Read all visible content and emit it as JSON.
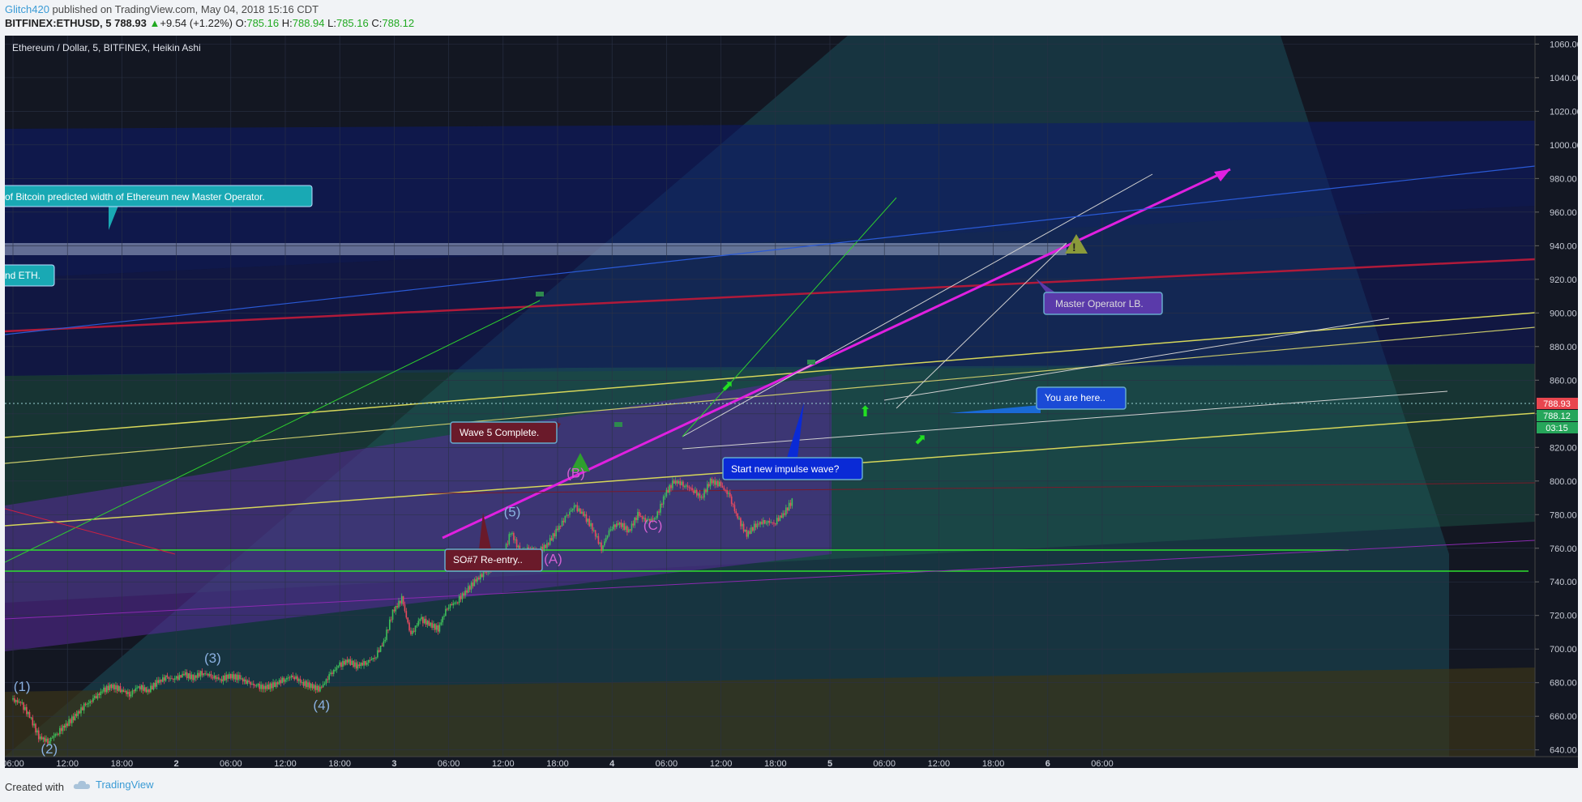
{
  "header": {
    "author": "Glitch420",
    "published_text": "published on TradingView.com, May 04, 2018 15:16 CDT",
    "symbol": "BITFINEX:ETHUSD, 5",
    "last_price": "788.93",
    "change": "+9.54 (+1.22%)",
    "o_label": "O:",
    "o_value": "785.16",
    "h_label": "H:",
    "h_value": "788.94",
    "l_label": "L:",
    "l_value": "785.16",
    "c_label": "C:",
    "c_value": "788.12"
  },
  "footer": {
    "created_with": "Created with",
    "brand": "TradingView"
  },
  "chart_data": {
    "type": "candlestick",
    "title": "Ethereum / Dollar, 5, BITFINEX, Heikin Ashi",
    "ylim": [
      636,
      1065
    ],
    "y_ticks": [
      640,
      660,
      680,
      700,
      720,
      740,
      760,
      780,
      800,
      820,
      840,
      860,
      880,
      900,
      920,
      940,
      960,
      980,
      1000,
      1020,
      1040,
      1060
    ],
    "x_ticks": [
      {
        "label": "06:00",
        "t": 0
      },
      {
        "label": "12:00",
        "t": 6
      },
      {
        "label": "18:00",
        "t": 12
      },
      {
        "label": "2",
        "t": 18
      },
      {
        "label": "06:00",
        "t": 24
      },
      {
        "label": "12:00",
        "t": 30
      },
      {
        "label": "18:00",
        "t": 36
      },
      {
        "label": "3",
        "t": 42
      },
      {
        "label": "06:00",
        "t": 48
      },
      {
        "label": "12:00",
        "t": 54
      },
      {
        "label": "18:00",
        "t": 60
      },
      {
        "label": "4",
        "t": 66
      },
      {
        "label": "06:00",
        "t": 72
      },
      {
        "label": "12:00",
        "t": 78
      },
      {
        "label": "18:00",
        "t": 84
      },
      {
        "label": "5",
        "t": 90
      },
      {
        "label": "06:00",
        "t": 96
      },
      {
        "label": "12:00",
        "t": 102
      },
      {
        "label": "18:00",
        "t": 108
      },
      {
        "label": "6",
        "t": 114
      },
      {
        "label": "06:00",
        "t": 120
      }
    ],
    "price_path": [
      [
        0,
        670
      ],
      [
        1,
        668
      ],
      [
        2,
        660
      ],
      [
        3,
        648
      ],
      [
        4,
        645
      ],
      [
        5,
        650
      ],
      [
        6,
        655
      ],
      [
        7,
        660
      ],
      [
        8,
        666
      ],
      [
        9,
        670
      ],
      [
        10,
        675
      ],
      [
        11,
        678
      ],
      [
        12,
        676
      ],
      [
        13,
        673
      ],
      [
        14,
        678
      ],
      [
        15,
        675
      ],
      [
        16,
        680
      ],
      [
        17,
        683
      ],
      [
        18,
        682
      ],
      [
        19,
        685
      ],
      [
        20,
        683
      ],
      [
        21,
        686
      ],
      [
        22,
        684
      ],
      [
        23,
        682
      ],
      [
        24,
        684
      ],
      [
        25,
        683
      ],
      [
        26,
        680
      ],
      [
        27,
        678
      ],
      [
        28,
        677
      ],
      [
        29,
        679
      ],
      [
        30,
        682
      ],
      [
        31,
        684
      ],
      [
        32,
        680
      ],
      [
        33,
        678
      ],
      [
        34,
        676
      ],
      [
        35,
        684
      ],
      [
        36,
        690
      ],
      [
        37,
        693
      ],
      [
        38,
        690
      ],
      [
        39,
        692
      ],
      [
        40,
        695
      ],
      [
        41,
        704
      ],
      [
        42,
        722
      ],
      [
        43,
        730
      ],
      [
        44,
        708
      ],
      [
        45,
        718
      ],
      [
        46,
        715
      ],
      [
        47,
        712
      ],
      [
        48,
        725
      ],
      [
        49,
        728
      ],
      [
        50,
        734
      ],
      [
        51,
        740
      ],
      [
        52,
        745
      ],
      [
        53,
        748
      ],
      [
        54,
        752
      ],
      [
        55,
        770
      ],
      [
        56,
        758
      ],
      [
        57,
        760
      ],
      [
        58,
        758
      ],
      [
        59,
        762
      ],
      [
        60,
        770
      ],
      [
        61,
        778
      ],
      [
        62,
        785
      ],
      [
        63,
        780
      ],
      [
        64,
        772
      ],
      [
        65,
        760
      ],
      [
        66,
        772
      ],
      [
        67,
        775
      ],
      [
        68,
        770
      ],
      [
        69,
        780
      ],
      [
        70,
        776
      ],
      [
        71,
        778
      ],
      [
        72,
        792
      ],
      [
        73,
        800
      ],
      [
        74,
        798
      ],
      [
        75,
        795
      ],
      [
        76,
        790
      ],
      [
        77,
        800
      ],
      [
        78,
        798
      ],
      [
        79,
        792
      ],
      [
        80,
        778
      ],
      [
        81,
        768
      ],
      [
        82,
        774
      ],
      [
        83,
        776
      ],
      [
        84,
        775
      ],
      [
        85,
        780
      ],
      [
        86,
        788.12
      ]
    ],
    "last_price": "788.93",
    "close_price": "788.12",
    "countdown": "03:15",
    "wave_labels": [
      {
        "text": "(1)",
        "t": 1,
        "y": 675
      },
      {
        "text": "(2)",
        "t": 4,
        "y": 638
      },
      {
        "text": "(3)",
        "t": 22,
        "y": 692
      },
      {
        "text": "(4)",
        "t": 34,
        "y": 664
      },
      {
        "text": "(5)",
        "t": 55,
        "y": 779
      },
      {
        "text": "(A)",
        "t": 59.5,
        "y": 751
      },
      {
        "text": "(B)",
        "t": 62,
        "y": 802
      },
      {
        "text": "(C)",
        "t": 70.5,
        "y": 771
      }
    ],
    "callouts": [
      {
        "text": "of Bitcoin predicted width of Ethereum new Master Operator.",
        "kind": "teal"
      },
      {
        "text": "nd ETH.",
        "kind": "teal"
      },
      {
        "text": "Master Operator LB.",
        "kind": "purple"
      },
      {
        "text": "Wave 5 Complete.",
        "kind": "maroon"
      },
      {
        "text": "Start new impulse wave?",
        "kind": "blue"
      },
      {
        "text": "You are here..",
        "kind": "blue"
      },
      {
        "text": "SO#7 Re-entry..",
        "kind": "maroon"
      }
    ]
  }
}
